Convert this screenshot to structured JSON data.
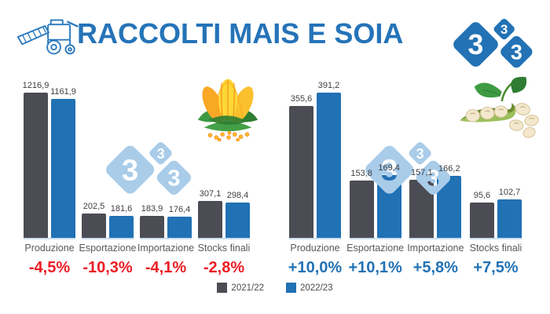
{
  "header": {
    "title": "RACCOLTI MAIS E SOIA"
  },
  "logo": {
    "digit": "3",
    "name": "333"
  },
  "watermark": {
    "digit": "3",
    "name": "333"
  },
  "colors": {
    "accent_blue": "#2573B8",
    "bar_gray": "#4C4C54",
    "bar_blue": "#2171B5",
    "negative_red": "#ED1C24",
    "positive_blue": "#2272B5",
    "watermark_blue": "#A9CCE9"
  },
  "legend": {
    "items": [
      {
        "label": "2021/22",
        "color": "#4C4C54"
      },
      {
        "label": "2022/23",
        "color": "#2171B5"
      }
    ]
  },
  "chart_data": [
    {
      "type": "bar",
      "name": "mais",
      "icon": "corn",
      "categories": [
        "Produzione",
        "Esportazione",
        "Importazione",
        "Stocks finali"
      ],
      "series": [
        {
          "name": "2021/22",
          "color": "#4C4C54",
          "values": [
            1216.9,
            202.5,
            183.9,
            307.1
          ]
        },
        {
          "name": "2022/23",
          "color": "#2171B5",
          "values": [
            1161.9,
            181.6,
            176.4,
            298.4
          ]
        }
      ],
      "pct_changes": [
        "-4,5%",
        "-10,3%",
        "-4,1%",
        "-2,8%"
      ],
      "pct_color": "#ED1C24",
      "ylim": [
        0,
        1216.9
      ],
      "decimal_separator": ","
    },
    {
      "type": "bar",
      "name": "soia",
      "icon": "soybean",
      "categories": [
        "Produzione",
        "Esportazione",
        "Importazione",
        "Stocks finali"
      ],
      "series": [
        {
          "name": "2021/22",
          "color": "#4C4C54",
          "values": [
            355.6,
            153.8,
            157.1,
            95.6
          ]
        },
        {
          "name": "2022/23",
          "color": "#2171B5",
          "values": [
            391.2,
            169.4,
            166.2,
            102.7
          ]
        }
      ],
      "pct_changes": [
        "+10,0%",
        "+10,1%",
        "+5,8%",
        "+7,5%"
      ],
      "pct_color": "#2272B5",
      "ylim": [
        0,
        391.2
      ],
      "decimal_separator": ","
    }
  ]
}
